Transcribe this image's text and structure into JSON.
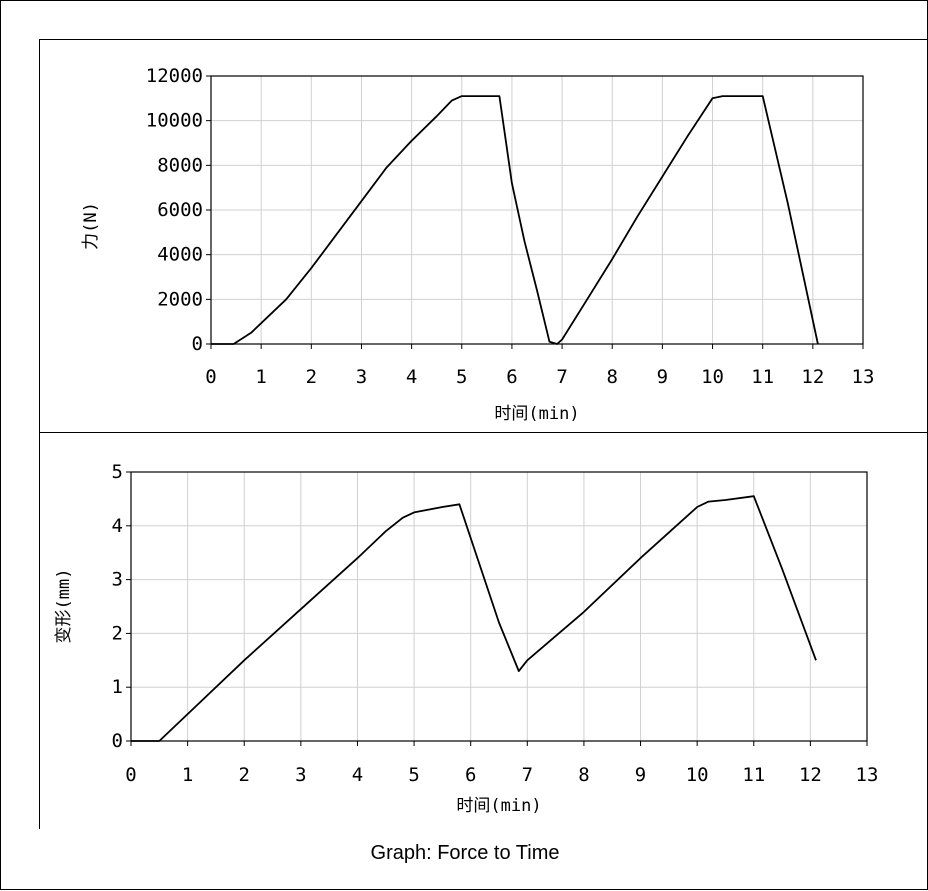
{
  "caption": "Graph: Force to Time",
  "chart_data": [
    {
      "type": "line",
      "title": "",
      "xlabel": "时间(min)",
      "ylabel": "力(N)",
      "xlim": [
        0,
        13
      ],
      "ylim": [
        0,
        12000
      ],
      "xticks": [
        "0",
        "1",
        "2",
        "3",
        "4",
        "5",
        "6",
        "7",
        "8",
        "9",
        "10",
        "11",
        "12",
        "13"
      ],
      "yticks": [
        "0",
        "2000",
        "4000",
        "6000",
        "8000",
        "10000",
        "12000"
      ],
      "grid": true,
      "series": [
        {
          "color": "#000000",
          "x": [
            0,
            0.45,
            0.8,
            1.5,
            2.0,
            2.5,
            3.0,
            3.5,
            4.0,
            4.5,
            4.8,
            5.0,
            5.5,
            5.75,
            6.0,
            6.25,
            6.5,
            6.75,
            6.9,
            7.0,
            7.5,
            8.0,
            8.5,
            9.0,
            9.5,
            10.0,
            10.2,
            10.6,
            11.0,
            11.5,
            12.1
          ],
          "y": [
            0,
            0,
            500,
            2000,
            3400,
            4900,
            6400,
            7900,
            9100,
            10200,
            10900,
            11100,
            11100,
            11100,
            7200,
            4600,
            2400,
            100,
            0,
            200,
            2000,
            3800,
            5700,
            7500,
            9300,
            11000,
            11100,
            11100,
            11100,
            6300,
            0
          ]
        }
      ]
    },
    {
      "type": "line",
      "title": "",
      "xlabel": "时间(min)",
      "ylabel": "变形(mm)",
      "xlim": [
        0,
        13
      ],
      "ylim": [
        0,
        5
      ],
      "xticks": [
        "0",
        "1",
        "2",
        "3",
        "4",
        "5",
        "6",
        "7",
        "8",
        "9",
        "10",
        "11",
        "12",
        "13"
      ],
      "yticks": [
        "0",
        "1",
        "2",
        "3",
        "4",
        "5"
      ],
      "grid": true,
      "series": [
        {
          "color": "#000000",
          "x": [
            0,
            0.5,
            1.0,
            2.0,
            3.0,
            4.0,
            4.5,
            4.8,
            5.0,
            5.5,
            5.8,
            6.5,
            6.85,
            7.0,
            8.0,
            9.0,
            10.0,
            10.2,
            10.5,
            11.0,
            11.5,
            12.1
          ],
          "y": [
            0,
            0,
            0.5,
            1.5,
            2.45,
            3.4,
            3.9,
            4.15,
            4.25,
            4.35,
            4.4,
            2.2,
            1.3,
            1.5,
            2.4,
            3.4,
            4.35,
            4.45,
            4.48,
            4.55,
            3.2,
            1.5
          ]
        }
      ]
    }
  ]
}
